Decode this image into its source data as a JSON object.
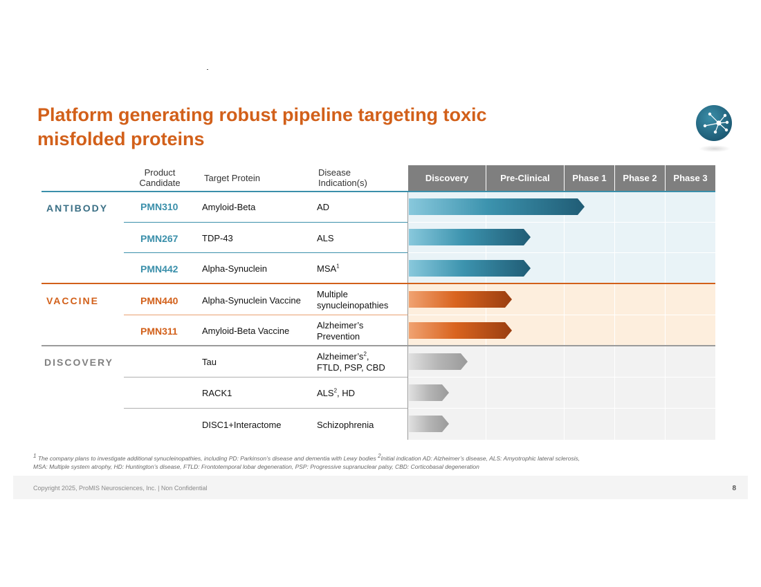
{
  "slide": {
    "title": "Platform generating robust pipeline targeting toxic misfolded proteins",
    "page_number": "8",
    "copyright": "Copyright 2025, ProMIS Neurosciences, Inc. | Non Confidential"
  },
  "table": {
    "headers": {
      "candidate": "Product Candidate",
      "target": "Target Protein",
      "indication": "Disease Indication(s)"
    },
    "phases": [
      "Discovery",
      "Pre-Clinical",
      "Phase 1",
      "Phase 2",
      "Phase 3"
    ],
    "groups": {
      "antibody": "ANTIBODY",
      "vaccine": "VACCINE",
      "discovery": "DISCOVERY"
    },
    "rows": [
      {
        "group": "antibody",
        "candidate": "PMN310",
        "target": "Amyloid-Beta",
        "indication": "AD",
        "progress_phases": 2.4
      },
      {
        "group": "antibody",
        "candidate": "PMN267",
        "target": "TDP-43",
        "indication": "ALS",
        "progress_phases": 1.57
      },
      {
        "group": "antibody",
        "candidate": "PMN442",
        "target": "Alpha-Synuclein",
        "indication": "MSA",
        "indication_sup": "1",
        "progress_phases": 1.57
      },
      {
        "group": "vaccine",
        "candidate": "PMN440",
        "target": "Alpha-Synuclein Vaccine",
        "indication": "Multiple synucleinopathies",
        "progress_phases": 1.33
      },
      {
        "group": "vaccine",
        "candidate": "PMN311",
        "target": "Amyloid-Beta Vaccine",
        "indication": "Alzheimer’s Prevention",
        "progress_phases": 1.33
      },
      {
        "group": "discovery",
        "candidate": "",
        "target": "Tau",
        "indication_a": "Alzheimer’s",
        "indication_sup": "2",
        "indication_b": ",",
        "indication_line2": "FTLD, PSP, CBD",
        "progress_phases": 0.76
      },
      {
        "group": "discovery",
        "candidate": "",
        "target": "RACK1",
        "indication_a": "ALS",
        "indication_sup": "2",
        "indication_b": ", HD",
        "progress_phases": 0.52
      },
      {
        "group": "discovery",
        "candidate": "",
        "target": "DISC1+Interactome",
        "indication": "Schizophrenia",
        "progress_phases": 0.52
      }
    ]
  },
  "footnote": {
    "sup1": "1",
    "text1": " The company plans to investigate additional synucleinopathies, including PD: Parkinson’s disease and dementia with Lewy bodies  ",
    "sup2": "2",
    "text2": "Initial indication AD: Alzheimer’s disease, ALS: Amyotrophic lateral sclerosis,",
    "line2": "MSA: Multiple system atrophy, HD: Huntington’s disease, FTLD: Frontotemporal lobar degeneration, PSP: Progressive supranuclear palsy, CBD: Corticobasal degeneration"
  },
  "colors": {
    "title": "#D2601A",
    "antibody": "#3A8FAA",
    "vaccine": "#D2601A",
    "discovery": "#7F7F7F",
    "header_bg": "#7F7F7F"
  },
  "icons": {
    "logo": "network-node-icon"
  }
}
